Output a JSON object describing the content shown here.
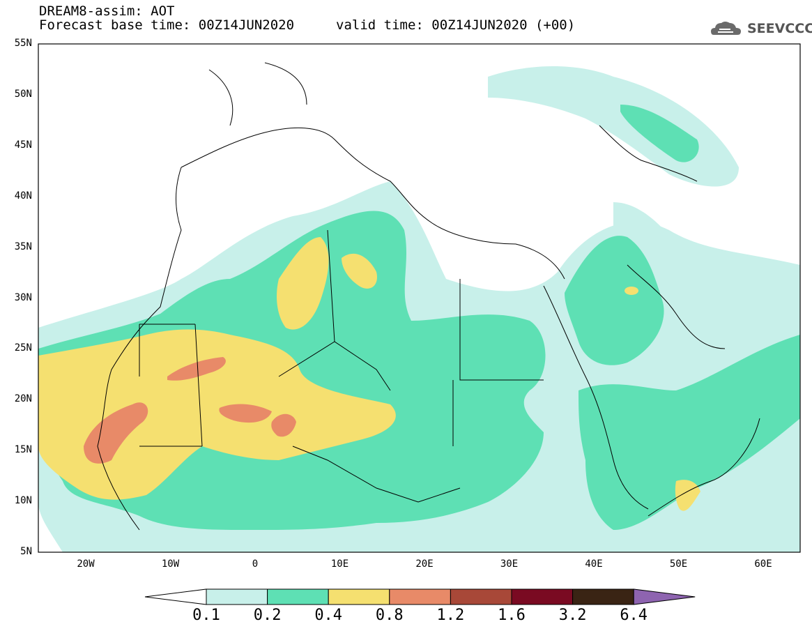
{
  "header": {
    "title_line1": "DREAM8-assim: AOT",
    "title_line2": "Forecast base time: 00Z14JUN2020",
    "valid_time": "valid time: 00Z14JUN2020 (+00)",
    "logo_text": "SEEVCCC"
  },
  "map": {
    "lat_ticks": [
      "55N",
      "50N",
      "45N",
      "40N",
      "35N",
      "30N",
      "25N",
      "20N",
      "15N",
      "10N",
      "5N"
    ],
    "lon_ticks": [
      "20W",
      "10W",
      "0",
      "10E",
      "20E",
      "30E",
      "40E",
      "50E",
      "60E"
    ]
  },
  "colorbar": {
    "levels": [
      "0.1",
      "0.2",
      "0.4",
      "0.8",
      "1.2",
      "1.6",
      "3.2",
      "6.4"
    ],
    "colors": [
      "#ffffff",
      "#c8f0ea",
      "#5ee0b4",
      "#f5e070",
      "#e88a68",
      "#a84838",
      "#7a0a22",
      "#3a2414",
      "#8e64b0"
    ]
  }
}
